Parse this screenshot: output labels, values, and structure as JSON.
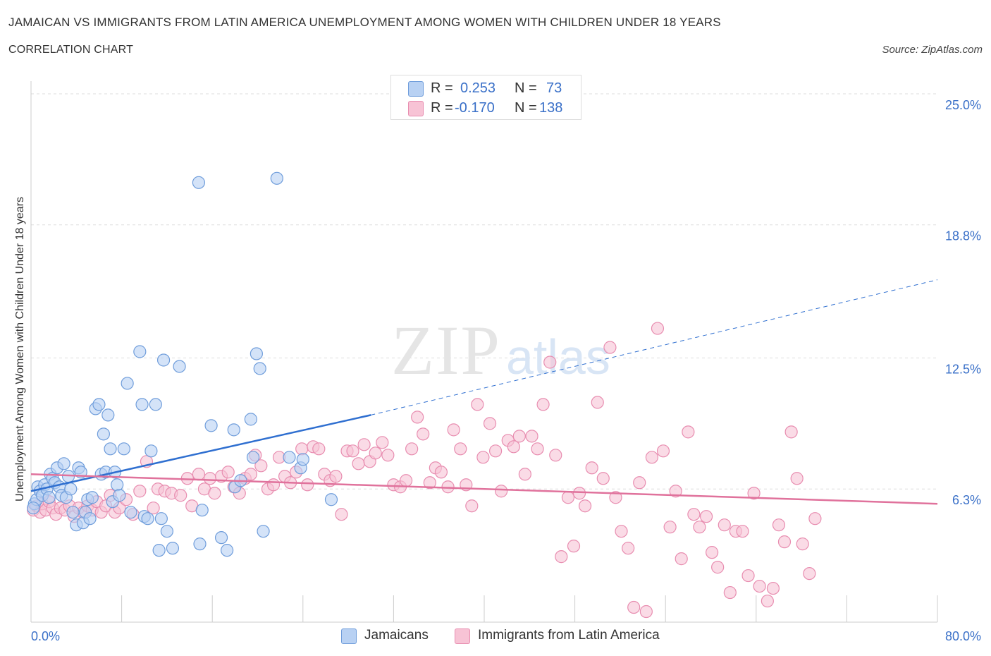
{
  "title": "JAMAICAN VS IMMIGRANTS FROM LATIN AMERICA UNEMPLOYMENT AMONG WOMEN WITH CHILDREN UNDER 18 YEARS",
  "subtitle": "CORRELATION CHART",
  "source": "Source: ZipAtlas.com",
  "watermark": {
    "zip": "ZIP",
    "atlas": "atlas"
  },
  "legend": {
    "r_label": "R =",
    "n_label": "N =",
    "series": [
      {
        "r": "0.253",
        "n": "73"
      },
      {
        "r": "-0.170",
        "n": "138"
      }
    ]
  },
  "chart_data": {
    "type": "scatter",
    "ylabel": "Unemployment Among Women with Children Under 18 years",
    "xlim": [
      0,
      80
    ],
    "ylim": [
      0,
      25.6
    ],
    "x_tick_labels": [
      {
        "value": 0,
        "label": "0.0%"
      },
      {
        "value": 80,
        "label": "80.0%"
      }
    ],
    "y_tick_labels": [
      {
        "value": 6.3,
        "label": "6.3%"
      },
      {
        "value": 12.5,
        "label": "12.5%"
      },
      {
        "value": 18.8,
        "label": "18.8%"
      },
      {
        "value": 25.0,
        "label": "25.0%"
      }
    ],
    "grid": true,
    "colors": {
      "series_a_fill": "#b8d1f3",
      "series_a_stroke": "#6f9ddb",
      "series_a_line": "#2f6fd0",
      "series_b_fill": "#f7c3d5",
      "series_b_stroke": "#e88db0",
      "series_b_line": "#e0729c",
      "axis_label": "#3a70c8"
    },
    "series": [
      {
        "name": "Jamaicans",
        "trend": {
          "x": [
            0,
            30,
            80
          ],
          "y": [
            6.2,
            9.8,
            16.2
          ],
          "solid_until": 30
        },
        "points": [
          [
            0.3,
            5.6
          ],
          [
            0.5,
            5.8
          ],
          [
            0.6,
            6.4
          ],
          [
            0.8,
            6.2
          ],
          [
            1.0,
            6.0
          ],
          [
            1.2,
            6.5
          ],
          [
            1.4,
            6.3
          ],
          [
            1.6,
            5.9
          ],
          [
            1.7,
            7.0
          ],
          [
            1.9,
            6.8
          ],
          [
            2.1,
            6.6
          ],
          [
            2.3,
            7.3
          ],
          [
            2.5,
            6.4
          ],
          [
            2.7,
            6.0
          ],
          [
            2.9,
            7.5
          ],
          [
            3.1,
            5.9
          ],
          [
            3.3,
            6.9
          ],
          [
            3.5,
            6.3
          ],
          [
            3.7,
            5.2
          ],
          [
            4.0,
            4.6
          ],
          [
            4.2,
            7.3
          ],
          [
            4.4,
            7.1
          ],
          [
            4.6,
            4.7
          ],
          [
            4.8,
            5.2
          ],
          [
            5.0,
            5.8
          ],
          [
            5.2,
            4.9
          ],
          [
            5.4,
            5.9
          ],
          [
            5.7,
            10.1
          ],
          [
            6.0,
            10.3
          ],
          [
            6.2,
            7.0
          ],
          [
            6.4,
            8.9
          ],
          [
            6.6,
            7.1
          ],
          [
            6.8,
            9.8
          ],
          [
            7.0,
            8.2
          ],
          [
            7.2,
            5.7
          ],
          [
            7.4,
            7.1
          ],
          [
            7.6,
            6.5
          ],
          [
            7.8,
            6.0
          ],
          [
            8.2,
            8.2
          ],
          [
            8.5,
            11.3
          ],
          [
            8.8,
            5.2
          ],
          [
            9.6,
            12.8
          ],
          [
            9.8,
            10.3
          ],
          [
            10.0,
            5.0
          ],
          [
            10.3,
            4.9
          ],
          [
            10.6,
            8.1
          ],
          [
            11.0,
            10.3
          ],
          [
            11.3,
            3.4
          ],
          [
            11.5,
            4.9
          ],
          [
            11.7,
            12.4
          ],
          [
            12.0,
            4.3
          ],
          [
            12.5,
            3.5
          ],
          [
            13.1,
            12.1
          ],
          [
            14.8,
            20.8
          ],
          [
            14.9,
            3.7
          ],
          [
            15.1,
            5.3
          ],
          [
            15.9,
            9.3
          ],
          [
            16.8,
            4.0
          ],
          [
            17.3,
            3.4
          ],
          [
            17.9,
            9.1
          ],
          [
            18.0,
            6.4
          ],
          [
            18.5,
            6.7
          ],
          [
            19.4,
            9.6
          ],
          [
            19.6,
            7.8
          ],
          [
            19.9,
            12.7
          ],
          [
            20.2,
            12.0
          ],
          [
            20.5,
            4.3
          ],
          [
            21.7,
            21.0
          ],
          [
            22.8,
            7.8
          ],
          [
            23.8,
            7.3
          ],
          [
            24.0,
            7.7
          ],
          [
            26.5,
            5.8
          ],
          [
            0.2,
            5.4
          ]
        ]
      },
      {
        "name": "Immigrants from Latin America",
        "trend": {
          "x": [
            0,
            80
          ],
          "y": [
            7.0,
            5.6
          ]
        },
        "points": [
          [
            0.2,
            5.3
          ],
          [
            0.5,
            5.5
          ],
          [
            0.8,
            5.2
          ],
          [
            1.0,
            5.6
          ],
          [
            1.3,
            5.3
          ],
          [
            1.6,
            5.7
          ],
          [
            1.9,
            5.4
          ],
          [
            2.2,
            5.1
          ],
          [
            2.6,
            5.4
          ],
          [
            3.0,
            5.3
          ],
          [
            3.4,
            5.5
          ],
          [
            3.8,
            5.0
          ],
          [
            4.2,
            5.4
          ],
          [
            4.6,
            5.2
          ],
          [
            5.0,
            5.5
          ],
          [
            5.4,
            5.3
          ],
          [
            5.8,
            5.7
          ],
          [
            6.2,
            5.2
          ],
          [
            6.6,
            5.5
          ],
          [
            7.0,
            6.0
          ],
          [
            7.4,
            5.2
          ],
          [
            7.8,
            5.4
          ],
          [
            8.4,
            5.8
          ],
          [
            9.0,
            5.1
          ],
          [
            9.6,
            6.2
          ],
          [
            10.2,
            7.6
          ],
          [
            10.8,
            5.4
          ],
          [
            11.2,
            6.3
          ],
          [
            11.8,
            6.2
          ],
          [
            12.4,
            6.1
          ],
          [
            13.2,
            6.0
          ],
          [
            13.8,
            6.8
          ],
          [
            14.2,
            5.5
          ],
          [
            14.8,
            7.0
          ],
          [
            15.3,
            6.3
          ],
          [
            15.8,
            6.8
          ],
          [
            16.2,
            6.1
          ],
          [
            16.8,
            6.9
          ],
          [
            17.4,
            7.1
          ],
          [
            17.9,
            6.4
          ],
          [
            18.4,
            6.1
          ],
          [
            18.9,
            6.8
          ],
          [
            19.4,
            7.0
          ],
          [
            19.8,
            7.9
          ],
          [
            20.3,
            7.4
          ],
          [
            20.9,
            6.3
          ],
          [
            21.4,
            6.5
          ],
          [
            21.9,
            7.8
          ],
          [
            22.4,
            6.9
          ],
          [
            22.9,
            6.6
          ],
          [
            23.4,
            7.1
          ],
          [
            23.9,
            8.2
          ],
          [
            24.4,
            6.5
          ],
          [
            24.9,
            8.3
          ],
          [
            25.4,
            8.2
          ],
          [
            25.9,
            7.0
          ],
          [
            26.4,
            6.7
          ],
          [
            26.9,
            6.9
          ],
          [
            27.4,
            5.1
          ],
          [
            27.9,
            8.1
          ],
          [
            28.4,
            8.1
          ],
          [
            28.9,
            7.5
          ],
          [
            29.4,
            8.4
          ],
          [
            29.9,
            7.6
          ],
          [
            30.4,
            8.0
          ],
          [
            31.0,
            8.5
          ],
          [
            31.5,
            7.9
          ],
          [
            32.0,
            6.5
          ],
          [
            32.6,
            6.4
          ],
          [
            33.1,
            6.7
          ],
          [
            33.6,
            8.2
          ],
          [
            34.1,
            9.7
          ],
          [
            34.6,
            8.9
          ],
          [
            35.2,
            6.6
          ],
          [
            35.7,
            7.3
          ],
          [
            36.2,
            7.1
          ],
          [
            36.8,
            6.4
          ],
          [
            37.3,
            9.1
          ],
          [
            37.9,
            8.2
          ],
          [
            38.4,
            6.5
          ],
          [
            38.9,
            5.5
          ],
          [
            39.4,
            10.3
          ],
          [
            39.9,
            7.8
          ],
          [
            40.5,
            9.4
          ],
          [
            41.0,
            8.1
          ],
          [
            41.5,
            6.2
          ],
          [
            42.1,
            8.6
          ],
          [
            42.6,
            8.3
          ],
          [
            43.1,
            8.8
          ],
          [
            43.6,
            7.0
          ],
          [
            44.2,
            8.8
          ],
          [
            44.7,
            8.2
          ],
          [
            45.2,
            10.3
          ],
          [
            45.8,
            12.3
          ],
          [
            46.3,
            7.9
          ],
          [
            46.8,
            3.1
          ],
          [
            47.4,
            5.9
          ],
          [
            47.9,
            3.6
          ],
          [
            48.4,
            6.1
          ],
          [
            48.9,
            5.5
          ],
          [
            49.5,
            7.3
          ],
          [
            50.0,
            10.4
          ],
          [
            50.5,
            6.8
          ],
          [
            51.1,
            13.0
          ],
          [
            51.6,
            5.9
          ],
          [
            52.1,
            4.3
          ],
          [
            52.7,
            3.5
          ],
          [
            53.2,
            0.7
          ],
          [
            53.7,
            6.6
          ],
          [
            54.3,
            0.5
          ],
          [
            54.8,
            7.8
          ],
          [
            55.3,
            13.9
          ],
          [
            55.8,
            8.1
          ],
          [
            56.4,
            4.5
          ],
          [
            56.9,
            6.2
          ],
          [
            57.4,
            3.0
          ],
          [
            58.0,
            9.0
          ],
          [
            58.5,
            5.1
          ],
          [
            59.0,
            4.5
          ],
          [
            59.6,
            5.0
          ],
          [
            60.1,
            3.3
          ],
          [
            60.6,
            2.6
          ],
          [
            61.2,
            4.6
          ],
          [
            61.7,
            1.4
          ],
          [
            62.2,
            4.3
          ],
          [
            62.8,
            4.3
          ],
          [
            63.3,
            2.2
          ],
          [
            63.8,
            6.1
          ],
          [
            64.3,
            1.7
          ],
          [
            65.0,
            1.0
          ],
          [
            65.5,
            1.6
          ],
          [
            66.0,
            4.6
          ],
          [
            66.5,
            3.8
          ],
          [
            67.1,
            9.0
          ],
          [
            67.6,
            6.8
          ],
          [
            68.1,
            3.7
          ],
          [
            68.7,
            2.3
          ],
          [
            69.2,
            4.9
          ]
        ]
      }
    ]
  },
  "bottom_legend": [
    "Jamaicans",
    "Immigrants from Latin America"
  ]
}
